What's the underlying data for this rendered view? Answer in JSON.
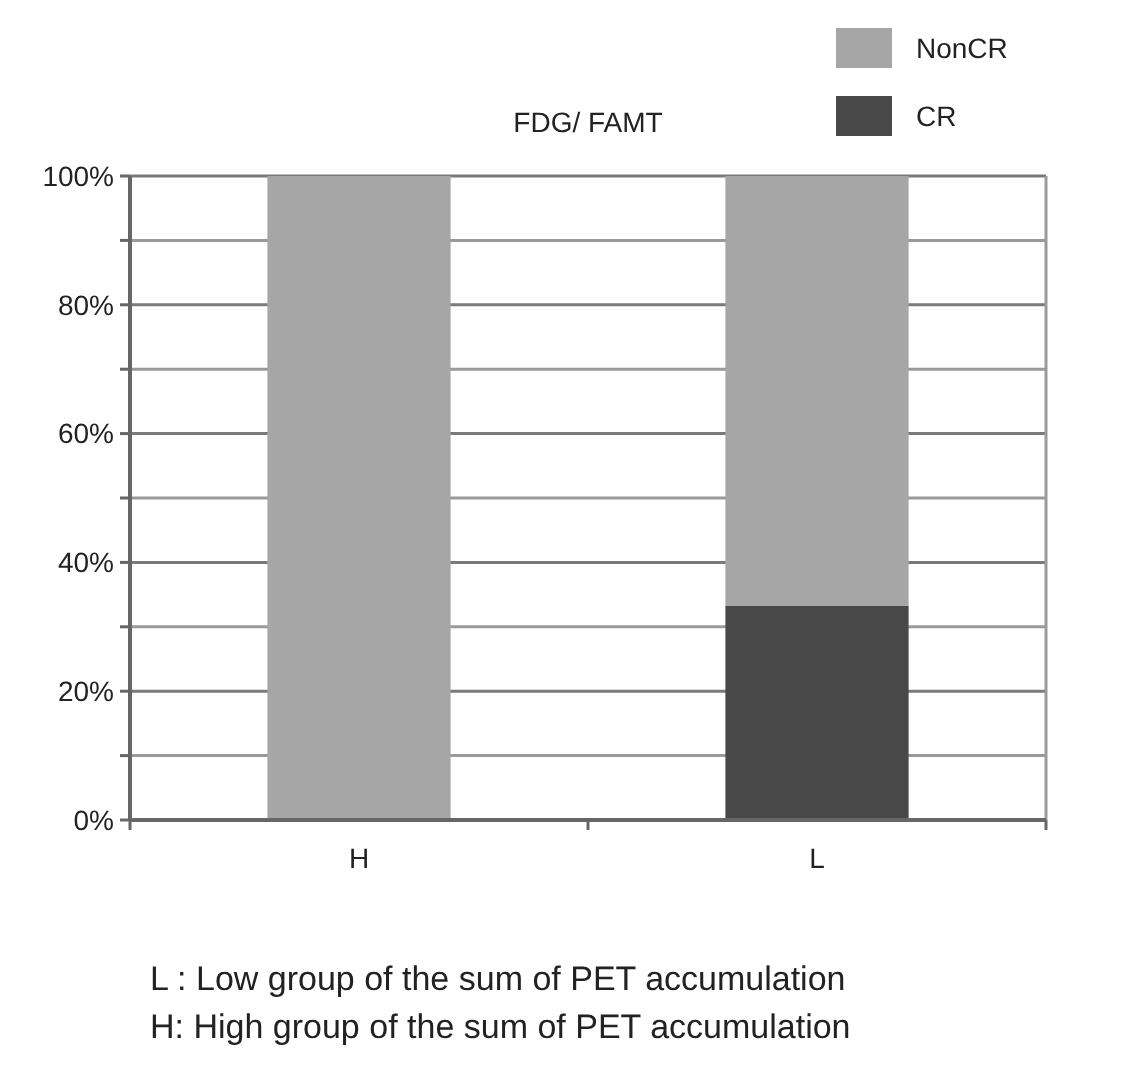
{
  "chart_data": {
    "type": "bar",
    "title": "FDG/ FAMT",
    "categories": [
      "H",
      "L"
    ],
    "stacked": true,
    "series": [
      {
        "name": "CR",
        "color": "#484848",
        "values": [
          0,
          33.3
        ]
      },
      {
        "name": "NonCR",
        "color": "#a6a6a6",
        "values": [
          100,
          66.7
        ]
      }
    ],
    "ylim": [
      0,
      100
    ],
    "yticks": [
      {
        "value": 0,
        "label": "0%"
      },
      {
        "value": 10,
        "label": null
      },
      {
        "value": 20,
        "label": "20%"
      },
      {
        "value": 30,
        "label": null
      },
      {
        "value": 40,
        "label": "40%"
      },
      {
        "value": 50,
        "label": null
      },
      {
        "value": 60,
        "label": "60%"
      },
      {
        "value": 70,
        "label": null
      },
      {
        "value": 80,
        "label": "80%"
      },
      {
        "value": 90,
        "label": null
      },
      {
        "value": 100,
        "label": "100%"
      }
    ],
    "grid": "y",
    "legend": "top right",
    "annotations": [
      "L : Low group of the sum of PET accumulation",
      "H: High group of the sum of PET accumulation"
    ]
  }
}
